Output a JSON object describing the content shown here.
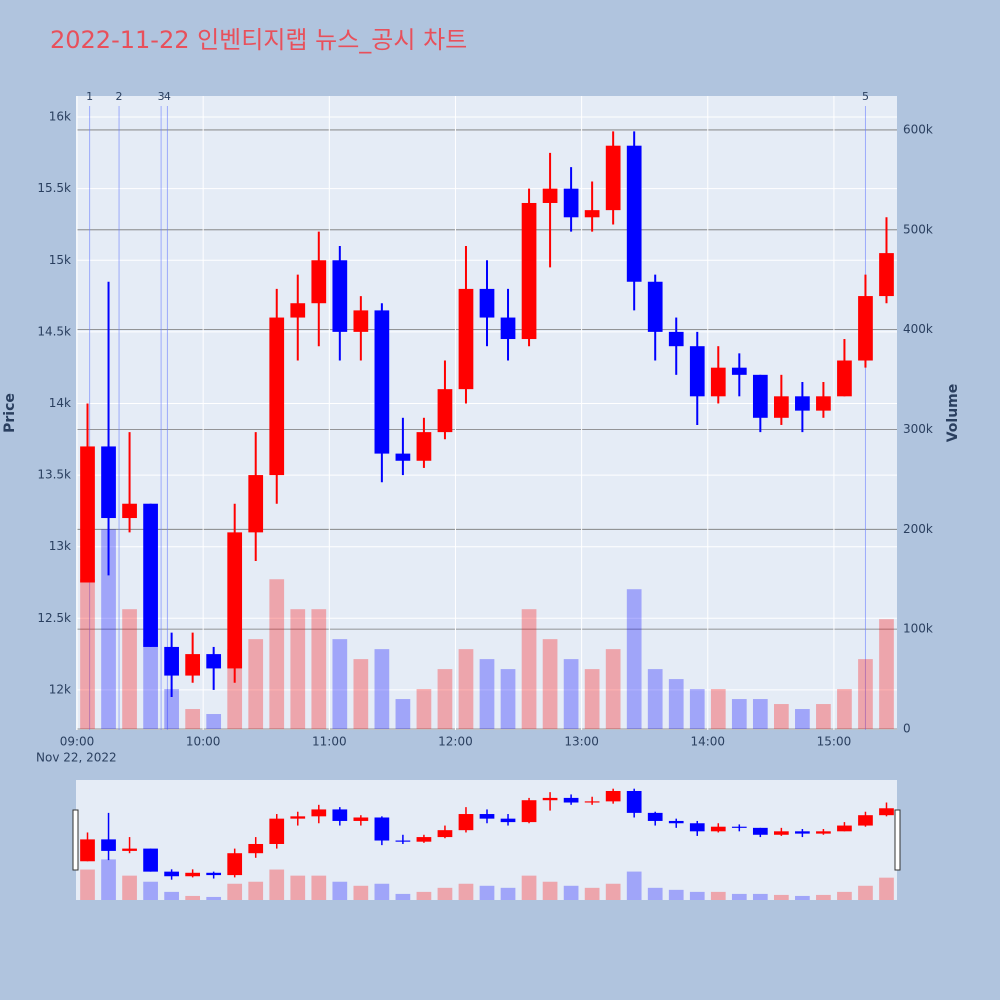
{
  "chart_data": {
    "type": "candlestick",
    "title": "2022-11-22 인벤티지랩 뉴스_공시 차트",
    "x": [
      "09:00",
      "09:10",
      "09:20",
      "09:30",
      "09:40",
      "09:50",
      "10:00",
      "10:10",
      "10:20",
      "10:30",
      "10:40",
      "10:50",
      "11:00",
      "11:10",
      "11:20",
      "11:30",
      "11:40",
      "11:50",
      "12:00",
      "12:10",
      "12:20",
      "12:30",
      "12:40",
      "12:50",
      "13:00",
      "13:10",
      "13:20",
      "13:30",
      "13:40",
      "13:50",
      "14:00",
      "14:10",
      "14:20",
      "14:30",
      "14:40",
      "14:50",
      "15:00",
      "15:10",
      "15:20"
    ],
    "open": [
      12750,
      13700,
      13200,
      13300,
      12300,
      12100,
      12250,
      12150,
      13100,
      13500,
      14600,
      14700,
      15000,
      14500,
      14650,
      13650,
      13600,
      13800,
      14100,
      14800,
      14600,
      14450,
      15400,
      15500,
      15300,
      15350,
      15800,
      14850,
      14500,
      14400,
      14050,
      14250,
      14200,
      13900,
      14050,
      13950,
      14050,
      14300,
      14750
    ],
    "high": [
      14000,
      14850,
      13800,
      13300,
      12400,
      12400,
      12300,
      13300,
      13800,
      14800,
      14900,
      15200,
      15100,
      14750,
      14700,
      13900,
      13900,
      14300,
      15100,
      15000,
      14800,
      15500,
      15750,
      15650,
      15550,
      15900,
      15900,
      14900,
      14600,
      14500,
      14400,
      14350,
      14200,
      14200,
      14150,
      14150,
      14450,
      14900,
      15300
    ],
    "low": [
      12750,
      12800,
      13100,
      12300,
      11950,
      12050,
      12000,
      12050,
      12900,
      13300,
      14300,
      14400,
      14300,
      14300,
      13450,
      13500,
      13550,
      13750,
      14000,
      14400,
      14300,
      14400,
      14950,
      15200,
      15200,
      15250,
      14650,
      14300,
      14200,
      13850,
      14000,
      14050,
      13800,
      13850,
      13800,
      13900,
      14050,
      14250,
      14700
    ],
    "close": [
      13700,
      13200,
      13300,
      12300,
      12100,
      12250,
      12150,
      13100,
      13500,
      14600,
      14700,
      15000,
      14500,
      14650,
      13650,
      13600,
      13800,
      14100,
      14800,
      14600,
      14450,
      15400,
      15500,
      15300,
      15350,
      15800,
      14850,
      14500,
      14400,
      14050,
      14250,
      14200,
      13900,
      14050,
      13950,
      14050,
      14300,
      14750,
      15050
    ],
    "volume": [
      150000,
      200000,
      120000,
      90000,
      40000,
      20000,
      15000,
      80000,
      90000,
      150000,
      120000,
      120000,
      90000,
      70000,
      80000,
      30000,
      40000,
      60000,
      80000,
      70000,
      60000,
      120000,
      90000,
      70000,
      60000,
      80000,
      140000,
      60000,
      50000,
      40000,
      40000,
      30000,
      30000,
      25000,
      20000,
      25000,
      40000,
      70000,
      110000
    ],
    "xlim": [
      "09:00",
      "15:30"
    ],
    "xticks": [
      "09:00",
      "10:00",
      "11:00",
      "12:00",
      "13:00",
      "14:00",
      "15:00"
    ],
    "date_label": "Nov 22, 2022",
    "ylabel": "Price",
    "y2label": "Volume",
    "ylim": [
      11720,
      16147
    ],
    "yticks": [
      {
        "value": 12000,
        "label": "12k"
      },
      {
        "value": 12500,
        "label": "12.5k"
      },
      {
        "value": 13000,
        "label": "13k"
      },
      {
        "value": 13500,
        "label": "13.5k"
      },
      {
        "value": 14000,
        "label": "14k"
      },
      {
        "value": 14500,
        "label": "14.5k"
      },
      {
        "value": 15000,
        "label": "15k"
      },
      {
        "value": 15500,
        "label": "15.5k"
      },
      {
        "value": 16000,
        "label": "16k"
      }
    ],
    "y2lim": [
      0,
      634000
    ],
    "y2ticks": [
      0,
      {
        "value": 100000,
        "label": "100k"
      },
      {
        "value": 200000,
        "label": "200k"
      },
      {
        "value": 300000,
        "label": "300k"
      },
      {
        "value": 400000,
        "label": "400k"
      },
      {
        "value": 500000,
        "label": "500k"
      },
      {
        "value": 600000,
        "label": "600k"
      }
    ],
    "increasing_color": "#ff0000",
    "decreasing_color": "#0000ff",
    "markers": {
      "x": [
        "09:06",
        "09:20",
        "09:40",
        "09:43",
        "15:15"
      ],
      "labels": [
        "1",
        "2",
        "3",
        "4",
        "5"
      ]
    }
  }
}
